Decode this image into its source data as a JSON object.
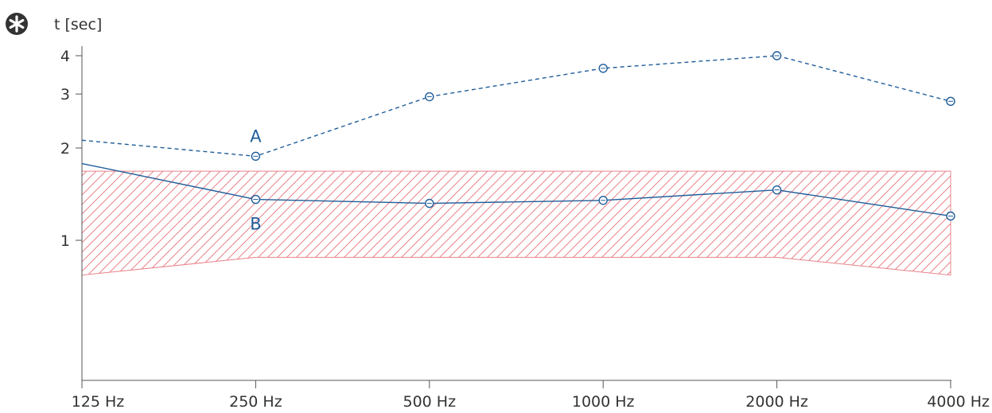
{
  "chart_data": {
    "type": "line",
    "ylabel": "t [sec]",
    "y_scale": "log",
    "ylim": [
      0.5,
      4.1
    ],
    "yticks": [
      1,
      2,
      3,
      4
    ],
    "categories": [
      "125 Hz",
      "250 Hz",
      "500 Hz",
      "1000 Hz",
      "2000 Hz",
      "4000 Hz"
    ],
    "series": [
      {
        "name": "A",
        "style": "dashed",
        "color": "#1f5d99",
        "values": [
          2.12,
          1.88,
          2.94,
          3.64,
          4.0,
          2.84
        ],
        "markers": [
          false,
          true,
          true,
          true,
          true,
          true
        ]
      },
      {
        "name": "B",
        "style": "solid",
        "color": "#1f5d99",
        "values": [
          1.78,
          1.36,
          1.32,
          1.35,
          1.46,
          1.2
        ],
        "markers": [
          false,
          true,
          true,
          true,
          true,
          true
        ]
      }
    ],
    "tolerance_band": {
      "color": "#e8838b",
      "upper": [
        1.68,
        1.68,
        1.68,
        1.68,
        1.68,
        1.68
      ],
      "lower": [
        0.77,
        0.88,
        0.88,
        0.88,
        0.88,
        0.77
      ]
    },
    "icon": {
      "name": "asterisk-icon",
      "color": "#333333"
    }
  }
}
